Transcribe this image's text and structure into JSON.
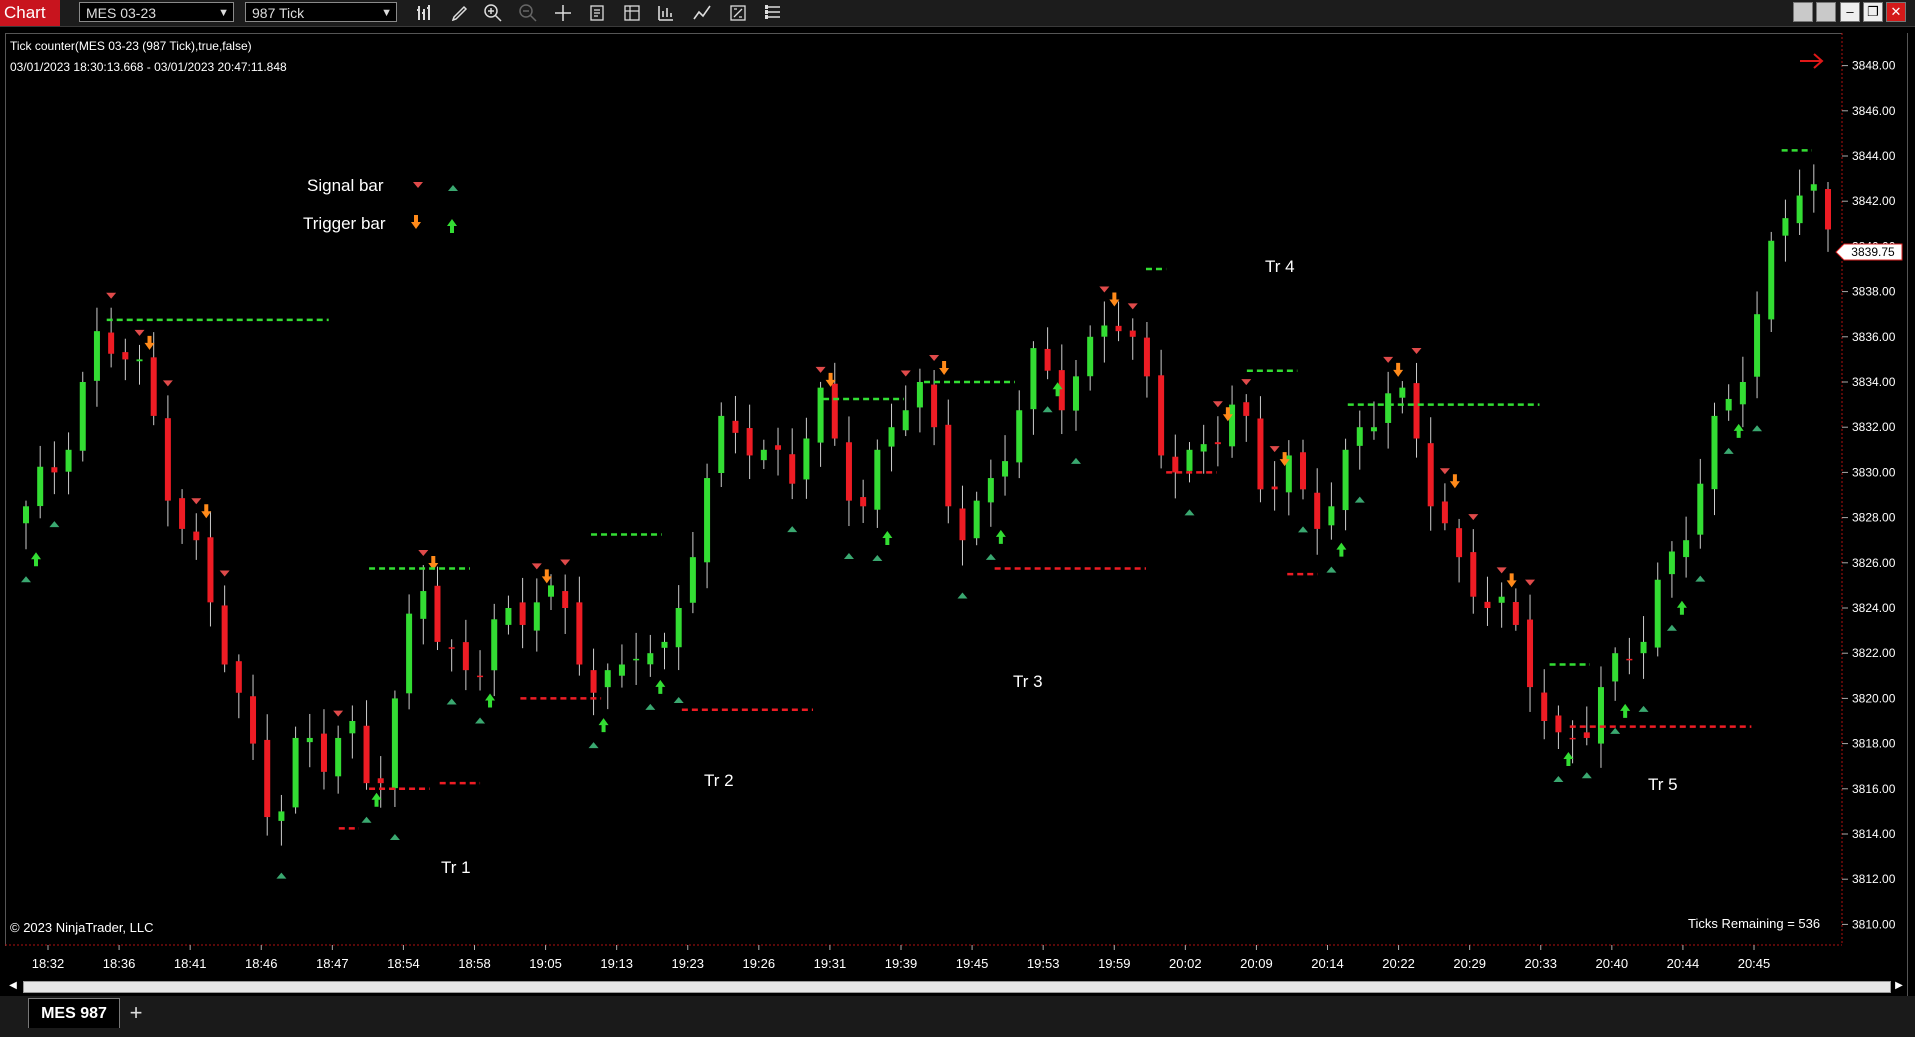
{
  "titlebar": {
    "app_tab": "Chart",
    "instrument": "MES 03-23",
    "interval": "987 Tick",
    "tool_icons": [
      "bars-type-icon",
      "draw-pencil-icon",
      "zoom-in-icon",
      "zoom-out-icon",
      "crosshair-icon",
      "data-box-icon",
      "template-icon",
      "chart-style-icon",
      "drawing-tools-icon",
      "strategies-icon",
      "properties-icon"
    ],
    "window_buttons": [
      "tile-icon",
      "tile-icon",
      "minimize-icon",
      "restore-icon",
      "close-icon"
    ]
  },
  "chart_info": {
    "indicator_line": "Tick counter(MES 03-23 (987 Tick),true,false)",
    "date_range": "03/01/2023 18:30:13.668 - 03/01/2023 20:47:11.848"
  },
  "legend": {
    "signal_label": "Signal bar",
    "trigger_label": "Trigger bar"
  },
  "annotations": [
    "Tr 1",
    "Tr 2",
    "Tr 3",
    "Tr 4",
    "Tr 5"
  ],
  "copyright": "© 2023 NinjaTrader, LLC",
  "ticks_remaining": "Ticks Remaining = 536",
  "current_price": "3839.75",
  "colors": {
    "up": "#33dd33",
    "down": "#ee1c24",
    "signal_down": "#e04a4a",
    "signal_up": "#3aa870",
    "trigger_down": "#ff8a1a",
    "trigger_up": "#33dd33",
    "app_tab": "#c8141e"
  },
  "bottom": {
    "sheet_tab": "MES 987",
    "add_tab": "+"
  },
  "chart_data": {
    "type": "candlestick",
    "y_axis": {
      "min": 3809,
      "max": 3849,
      "ticks": [
        "3810.00",
        "3812.00",
        "3814.00",
        "3816.00",
        "3818.00",
        "3820.00",
        "3822.00",
        "3824.00",
        "3826.00",
        "3828.00",
        "3830.00",
        "3832.00",
        "3834.00",
        "3836.00",
        "3838.00",
        "3840.00",
        "3842.00",
        "3844.00",
        "3846.00",
        "3848.00"
      ]
    },
    "x_axis": {
      "labels": [
        "18:32",
        "18:36",
        "18:41",
        "18:46",
        "18:47",
        "18:54",
        "18:58",
        "19:05",
        "19:13",
        "19:23",
        "19:26",
        "19:31",
        "19:39",
        "19:45",
        "19:53",
        "19:59",
        "20:02",
        "20:09",
        "20:14",
        "20:22",
        "20:29",
        "20:33",
        "20:40",
        "20:44",
        "20:45"
      ]
    },
    "close_path": [
      3828,
      3830,
      3833,
      3836,
      3835,
      3833,
      3829,
      3826,
      3822,
      3818,
      3815,
      3818,
      3817,
      3819,
      3816,
      3820,
      3825,
      3822,
      3821,
      3824,
      3822,
      3826,
      3823,
      3821,
      3820,
      3823,
      3822,
      3827,
      3831,
      3832,
      3831,
      3830,
      3833,
      3830,
      3829,
      3832,
      3834,
      3830,
      3828,
      3829,
      3832,
      3835,
      3834,
      3835,
      3837,
      3835,
      3832,
      3830,
      3831,
      3833,
      3830,
      3831,
      3827,
      3829,
      3832,
      3834,
      3832,
      3829,
      3826,
      3825,
      3823,
      3821,
      3818,
      3819,
      3820,
      3822,
      3825,
      3827,
      3830,
      3833,
      3837,
      3841,
      3843,
      3840
    ],
    "candle_count": 128
  }
}
